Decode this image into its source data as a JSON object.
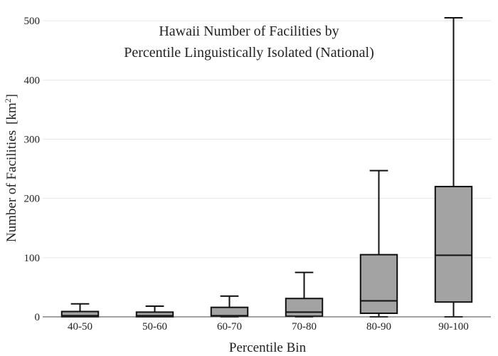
{
  "chart_data": {
    "type": "box",
    "title": "Hawaii Number of Facilities by",
    "subtitle": "Percentile Linguistically Isolated (National)",
    "xlabel": "Percentile Bin",
    "ylabel": "Number of Facilities",
    "ylabel_unit_prefix": "[km",
    "ylabel_unit_sup": "2",
    "ylabel_unit_suffix": "]",
    "ylim": [
      0,
      505
    ],
    "yticks": [
      0,
      100,
      200,
      300,
      400,
      500
    ],
    "ytick_labels": [
      "0",
      "100",
      "200",
      "300",
      "400",
      "500"
    ],
    "grid": true,
    "categories": [
      "40-50",
      "50-60",
      "60-70",
      "70-80",
      "80-90",
      "90-100"
    ],
    "boxes": [
      {
        "min": 0,
        "q1": 0,
        "median": 2,
        "q3": 9,
        "max": 22
      },
      {
        "min": 0,
        "q1": 0,
        "median": 2,
        "q3": 8,
        "max": 18
      },
      {
        "min": 0,
        "q1": 1,
        "median": 2,
        "q3": 16,
        "max": 35
      },
      {
        "min": 0,
        "q1": 1,
        "median": 8,
        "q3": 31,
        "max": 75
      },
      {
        "min": 0,
        "q1": 6,
        "median": 27,
        "q3": 105,
        "max": 247
      },
      {
        "min": 0,
        "q1": 25,
        "median": 104,
        "q3": 220,
        "max": 505
      }
    ]
  }
}
